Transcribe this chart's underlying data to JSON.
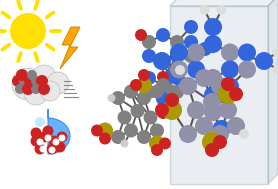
{
  "bg_color": "#ffffff",
  "sun_color": "#FFE000",
  "lightning_color": "#FFA500",
  "lightning_edge": "#cc8800",
  "bond_color": "#555555",
  "c_color": "#808080",
  "n_color": "#3366dd",
  "n_light_color": "#7799ee",
  "o_color": "#cc2222",
  "s_color": "#aa9900",
  "h_color": "#cccccc",
  "cloud_color": "#e8e8e8",
  "drop_color": "#55aaff",
  "slab_face_color": "#c8d4de",
  "slab_top_color": "#d5e0ea",
  "slab_right_color": "#b0c0cc"
}
